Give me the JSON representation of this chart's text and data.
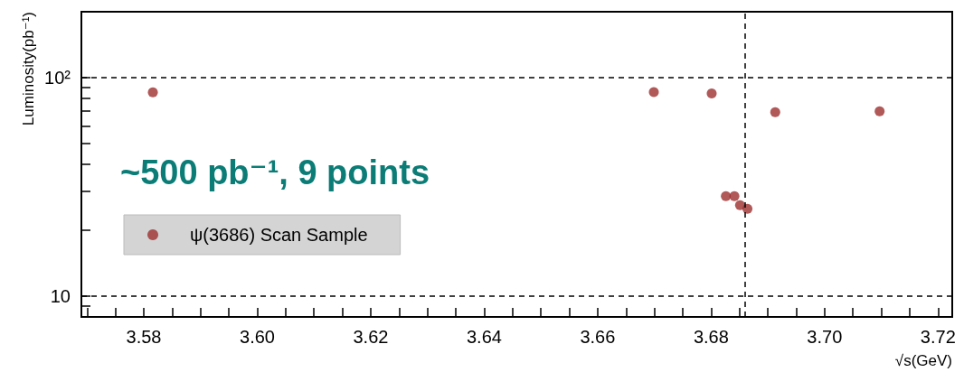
{
  "chart_data": {
    "type": "scatter",
    "xlabel": "√s(GeV)",
    "ylabel": "Luminosity(pb⁻¹)",
    "annotations": [
      "~500 pb⁻¹, 9 points"
    ],
    "series": [
      {
        "name": "ψ(3686) Scan Sample",
        "color": "#9e3030",
        "x": [
          3.5816,
          3.6699,
          3.6801,
          3.6826,
          3.6841,
          3.6851,
          3.6864,
          3.6913,
          3.7097
        ],
        "values": [
          85.5,
          85.6,
          84.5,
          28.6,
          28.6,
          26,
          25,
          69.4,
          70
        ]
      }
    ],
    "log": "y",
    "grid": "y",
    "legend": "bottom left",
    "marker": "circle",
    "xlim": [
      3.569,
      3.7225
    ],
    "ylim": [
      8,
      200
    ],
    "xticks": [
      {
        "value": 3.57,
        "label": null
      },
      {
        "value": 3.575,
        "label": null
      },
      {
        "value": 3.58,
        "label": "3.58"
      },
      {
        "value": 3.585,
        "label": null
      },
      {
        "value": 3.59,
        "label": null
      },
      {
        "value": 3.595,
        "label": null
      },
      {
        "value": 3.6,
        "label": "3.60"
      },
      {
        "value": 3.605,
        "label": null
      },
      {
        "value": 3.61,
        "label": null
      },
      {
        "value": 3.615,
        "label": null
      },
      {
        "value": 3.62,
        "label": "3.62"
      },
      {
        "value": 3.625,
        "label": null
      },
      {
        "value": 3.63,
        "label": null
      },
      {
        "value": 3.635,
        "label": null
      },
      {
        "value": 3.64,
        "label": "3.64"
      },
      {
        "value": 3.645,
        "label": null
      },
      {
        "value": 3.65,
        "label": null
      },
      {
        "value": 3.655,
        "label": null
      },
      {
        "value": 3.66,
        "label": "3.66"
      },
      {
        "value": 3.665,
        "label": null
      },
      {
        "value": 3.67,
        "label": null
      },
      {
        "value": 3.675,
        "label": null
      },
      {
        "value": 3.68,
        "label": "3.68"
      },
      {
        "value": 3.685,
        "label": null
      },
      {
        "value": 3.69,
        "label": null
      },
      {
        "value": 3.695,
        "label": null
      },
      {
        "value": 3.7,
        "label": "3.70"
      },
      {
        "value": 3.705,
        "label": null
      },
      {
        "value": 3.71,
        "label": null
      },
      {
        "value": 3.715,
        "label": null
      },
      {
        "value": 3.72,
        "label": "3.72"
      }
    ],
    "yticks": [
      {
        "value": 9,
        "label": null
      },
      {
        "value": 10,
        "label": "10"
      },
      {
        "value": 20,
        "label": null
      },
      {
        "value": 30,
        "label": null
      },
      {
        "value": 40,
        "label": null
      },
      {
        "value": 50,
        "label": null
      },
      {
        "value": 60,
        "label": null
      },
      {
        "value": 70,
        "label": null
      },
      {
        "value": 80,
        "label": null
      },
      {
        "value": 90,
        "label": null
      },
      {
        "value": 100,
        "label": "10²"
      }
    ],
    "ref_lines": [
      {
        "axis": "x",
        "value": 3.686,
        "label": null,
        "color": "#000000",
        "line_style": "dashed"
      }
    ]
  }
}
